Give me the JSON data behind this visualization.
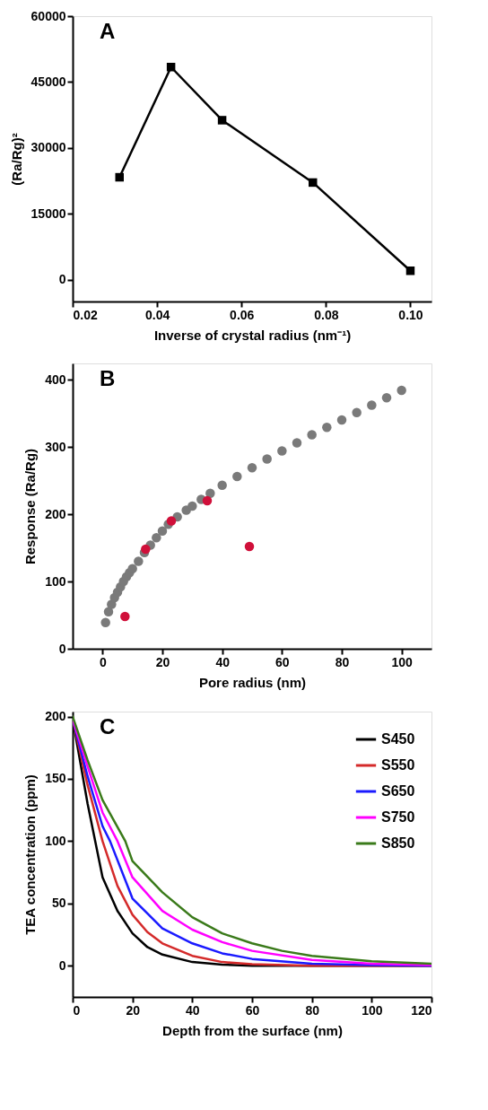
{
  "chart_data": [
    {
      "type": "line",
      "annotations": [
        "A"
      ],
      "xlabel": "Inverse of crystal radius (nm⁻¹)",
      "ylabel": "(Ra/Rg)²",
      "marker": "square",
      "xlim": [
        0.02,
        0.105
      ],
      "ylim": [
        -5000,
        60000
      ],
      "xticks": [
        0.02,
        0.04,
        0.06,
        0.08,
        {
          "value": 0.1,
          "label": "0.10"
        }
      ],
      "yticks": [
        0,
        15000,
        30000,
        45000,
        60000
      ],
      "series": [
        {
          "color": "#000000",
          "x": [
            0.0311,
            0.0433,
            0.0554,
            0.0769,
            0.1
          ],
          "values": [
            23300,
            48400,
            36300,
            22100,
            2000
          ]
        }
      ]
    },
    {
      "type": "scatter",
      "annotations": [
        "B"
      ],
      "xlabel": "Pore radius (nm)",
      "ylabel": "Response (Ra/Rg)",
      "marker": "circle",
      "xlim": [
        -10,
        110
      ],
      "ylim": [
        0,
        424
      ],
      "xticks": [
        0,
        20,
        40,
        60,
        80,
        100
      ],
      "yticks": [
        0,
        100,
        200,
        300,
        400
      ],
      "series": [
        {
          "color": "#7a7a7a",
          "x": [
            1,
            2,
            3,
            4,
            5,
            6,
            7,
            8,
            9,
            10,
            12,
            14,
            16,
            18,
            20,
            22,
            25,
            28,
            30,
            33,
            36,
            40,
            45,
            50,
            55,
            60,
            65,
            70,
            75,
            80,
            85,
            90,
            95,
            100
          ],
          "values": [
            39,
            55,
            66,
            76,
            84,
            92,
            100,
            107,
            113,
            119,
            130,
            143,
            154,
            165,
            175,
            185,
            196,
            206,
            212,
            222,
            231,
            243,
            256,
            269,
            282,
            294,
            306,
            318,
            329,
            340,
            351,
            362,
            373,
            384
          ]
        },
        {
          "color": "#d0103a",
          "x": [
            7.5,
            14.4,
            23.0,
            35.0,
            49.1
          ],
          "values": [
            48,
            148,
            190,
            220,
            152
          ]
        }
      ]
    },
    {
      "type": "line",
      "annotations": [
        "C"
      ],
      "xlabel": "Depth from the surface (nm)",
      "ylabel": "TEA concentration (ppm)",
      "legend": "top right",
      "xlim": [
        0,
        120
      ],
      "ylim": [
        -25,
        204
      ],
      "xticks": [
        0,
        20,
        40,
        60,
        80,
        100,
        120
      ],
      "yticks": [
        0,
        50,
        100,
        150,
        200
      ],
      "series": [
        {
          "name": "S450",
          "color": "#000000",
          "x": [
            0,
            5,
            10,
            15,
            20,
            25,
            30,
            40,
            50,
            60,
            80,
            100,
            120
          ],
          "values": [
            198,
            130,
            71,
            44,
            26,
            15,
            9,
            3,
            1,
            0,
            0,
            0,
            0
          ]
        },
        {
          "name": "S550",
          "color": "#d42a2a",
          "x": [
            0,
            5,
            10,
            15,
            20,
            25,
            30,
            40,
            50,
            60,
            80,
            100,
            120
          ],
          "values": [
            198,
            145,
            100,
            64,
            41,
            27,
            18,
            8,
            3,
            1.2,
            0,
            0,
            0
          ]
        },
        {
          "name": "S650",
          "color": "#1a1aff",
          "x": [
            0,
            5,
            10,
            12.5,
            20,
            30,
            40,
            50,
            60,
            80,
            100,
            120
          ],
          "values": [
            198,
            152,
            112,
            100,
            54,
            30,
            18,
            10,
            5.5,
            1.7,
            0.5,
            0
          ]
        },
        {
          "name": "S750",
          "color": "#ff00ff",
          "x": [
            0,
            5,
            10,
            15,
            20,
            30,
            40,
            50,
            60,
            80,
            100,
            120
          ],
          "values": [
            198,
            160,
            123,
            100,
            71,
            44,
            29,
            19,
            12,
            4.7,
            1.7,
            0.5
          ]
        },
        {
          "name": "S850",
          "color": "#3a7a1a",
          "x": [
            0,
            5,
            10,
            17.6,
            20,
            30,
            40,
            50,
            60,
            70,
            80,
            100,
            120
          ],
          "values": [
            200,
            165,
            133,
            100,
            84,
            59,
            39,
            26,
            18,
            12,
            8,
            3.7,
            1.7
          ]
        }
      ]
    }
  ]
}
